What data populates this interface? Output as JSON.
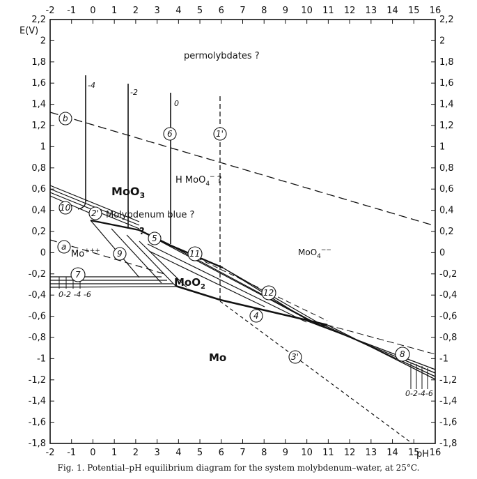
{
  "axes": {
    "x_label": "pH",
    "y_label": "E(V)",
    "x_ticks": [
      "-2",
      "-1",
      "0",
      "1",
      "2",
      "3",
      "4",
      "5",
      "6",
      "7",
      "8",
      "9",
      "10",
      "11",
      "12",
      "13",
      "14",
      "15",
      "16"
    ],
    "y_ticks": [
      "2,2",
      "2",
      "1,8",
      "1,6",
      "1,4",
      "1,2",
      "1",
      "0,8",
      "0,6",
      "0,4",
      "0,2",
      "0",
      "-0,2",
      "-0,4",
      "-0,6",
      "-0,8",
      "-1",
      "-1,2",
      "-1,4",
      "-1,6",
      "-1,8"
    ],
    "x_range": [
      -2,
      16
    ],
    "y_range": [
      -1.8,
      2.2
    ]
  },
  "regions": {
    "permolybdates": "permolybdates ?",
    "moo3_main": "MoO",
    "moo3_sub": "3",
    "hmoo4_main": "H MoO",
    "hmoo4_sub": "4",
    "hmoo4_sup": "−",
    "hmoo4_q": "?",
    "molybdenum_blue": "Molybdenum blue ?",
    "mo3_main": "Mo",
    "mo3_sup": "+++",
    "moo4_main": "MoO",
    "moo4_sub": "4",
    "moo4_sup": "−−",
    "moo2_main": "MoO",
    "moo2_sub": "2",
    "mo": "Mo",
    "question": "?"
  },
  "line_labels": {
    "b": "b",
    "a": "a",
    "l6": "6",
    "l1p": "1'",
    "l10": "10",
    "l2p": "2'",
    "l5": "5",
    "l9": "9",
    "l11": "11",
    "l7": "7",
    "l12": "12",
    "l4": "4",
    "l3p": "3'",
    "l8": "8"
  },
  "log_labels": {
    "m4": "-4",
    "m2": "-2",
    "z0": "0",
    "left_bottom": "0-2 -4 -6",
    "right_bottom": "0-2-4-6"
  },
  "caption": "Fig. 1. Potential–pH equilibrium diagram for the system molybdenum–water, at 25°C."
}
